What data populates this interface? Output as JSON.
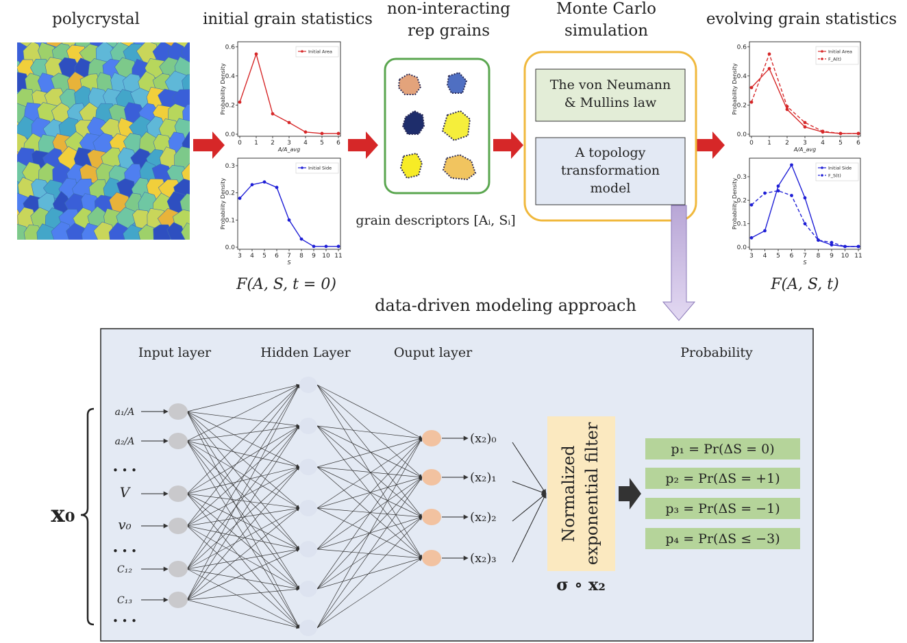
{
  "headers": {
    "polycrystal": "polycrystal",
    "initial_stats": "initial grain statistics",
    "rep_grains_line1": "non-interacting",
    "rep_grains_line2": "rep grains",
    "mc_line1": "Monte Carlo",
    "mc_line2": "simulation",
    "evolving_stats": "evolving grain statistics"
  },
  "captions": {
    "initial": "F(A, S, t = 0)",
    "evolving": "F(A, S, t)",
    "descriptors": "grain descriptors [Aᵢ, Sᵢ]",
    "section_title": "data-driven modeling approach"
  },
  "monte_carlo": {
    "box1_line1": "The von Neumann",
    "box1_line2": "& Mullins law",
    "box2_line1": "A topology",
    "box2_line2": "transformation",
    "box2_line3": "model"
  },
  "network": {
    "input_label": "Input layer",
    "hidden_label": "Hidden Layer",
    "output_label": "Ouput layer",
    "probability_label": "Probability",
    "inputs": [
      "a₁/A",
      "a₂/A",
      "• • •",
      "V",
      "v₀",
      "• • •",
      "C₁₂",
      "C₁₃",
      "• • •"
    ],
    "outputs": [
      "(x₂)₀",
      "(x₂)₁",
      "(x₂)₂",
      "(x₂)₃"
    ],
    "filter_line1": "Normalized",
    "filter_line2": "exponential filter",
    "sigma_label": "σ ∘ x₂",
    "x0_label": "x₀",
    "probabilities": [
      "p₁ = Pr(ΔS = 0)",
      "p₂ = Pr(ΔS = +1)",
      "p₃ = Pr(ΔS = −1)",
      "p₄ = Pr(ΔS ≤ −3)"
    ]
  },
  "colors": {
    "red": "#d62728",
    "blue": "#1f1fd6",
    "green_frame": "#5aa64f",
    "mc_frame": "#f0b83c",
    "panel_bg": "#e4eaf4",
    "prob_bg": "#b5d49a",
    "filter_bg": "#fbe9c0"
  },
  "chart_data": [
    {
      "type": "line",
      "chart": "initial-area",
      "x": [
        0,
        1,
        2,
        3,
        4,
        5,
        6
      ],
      "series": [
        {
          "name": "Initial Area",
          "values": [
            0.22,
            0.55,
            0.14,
            0.08,
            0.015,
            0.005,
            0.005
          ]
        }
      ],
      "xlabel": "A/A_avg",
      "ylabel": "Probability Density",
      "xlim": [
        0,
        6
      ],
      "ylim": [
        0,
        0.62
      ],
      "xticks": [
        "0",
        "1",
        "2",
        "3",
        "4",
        "5",
        "6"
      ],
      "yticks": [
        "0.0",
        "0.2",
        "0.4",
        "0.6"
      ],
      "legend": "top-right"
    },
    {
      "type": "line",
      "chart": "initial-side",
      "x": [
        3,
        4,
        5,
        6,
        7,
        8,
        9,
        10,
        11
      ],
      "series": [
        {
          "name": "Initial Side",
          "values": [
            0.18,
            0.23,
            0.24,
            0.22,
            0.1,
            0.03,
            0.003,
            0.003,
            0.003
          ]
        }
      ],
      "xlabel": "S",
      "ylabel": "Probability Density",
      "xlim": [
        3,
        11
      ],
      "ylim": [
        0,
        0.32
      ],
      "xticks": [
        "3",
        "4",
        "5",
        "6",
        "7",
        "8",
        "9",
        "10",
        "11"
      ],
      "yticks": [
        "0.0",
        "0.1",
        "0.2",
        "0.3"
      ],
      "legend": "top-right"
    },
    {
      "type": "line",
      "chart": "evolving-area",
      "x": [
        0,
        1,
        2,
        3,
        4,
        5,
        6
      ],
      "series": [
        {
          "name": "Initial Area",
          "values": [
            0.32,
            0.45,
            0.17,
            0.05,
            0.015,
            0.005,
            0.005
          ]
        },
        {
          "name": "F_A(t)",
          "values": [
            0.22,
            0.55,
            0.19,
            0.08,
            0.02,
            0.005,
            0.005
          ]
        }
      ],
      "xlabel": "A/A_avg",
      "ylabel": "Probability Density",
      "xlim": [
        0,
        6
      ],
      "ylim": [
        0,
        0.62
      ],
      "xticks": [
        "0",
        "1",
        "2",
        "3",
        "4",
        "5",
        "6"
      ],
      "yticks": [
        "0.0",
        "0.2",
        "0.4",
        "0.6"
      ],
      "legend": "top-right"
    },
    {
      "type": "line",
      "chart": "evolving-side",
      "x": [
        3,
        4,
        5,
        6,
        7,
        8,
        9,
        10,
        11
      ],
      "series": [
        {
          "name": "Initial Side",
          "values": [
            0.04,
            0.07,
            0.26,
            0.35,
            0.21,
            0.03,
            0.01,
            0.003,
            0.003
          ]
        },
        {
          "name": "F_S(t)",
          "values": [
            0.18,
            0.23,
            0.24,
            0.22,
            0.1,
            0.03,
            0.02,
            0.003,
            0.003
          ]
        }
      ],
      "xlabel": "S",
      "ylabel": "Probability Density",
      "xlim": [
        3,
        11
      ],
      "ylim": [
        0,
        0.37
      ],
      "xticks": [
        "3",
        "4",
        "5",
        "6",
        "7",
        "8",
        "9",
        "10",
        "11"
      ],
      "yticks": [
        "0.0",
        "0.1",
        "0.2",
        "0.3"
      ],
      "legend": "top-right"
    }
  ]
}
